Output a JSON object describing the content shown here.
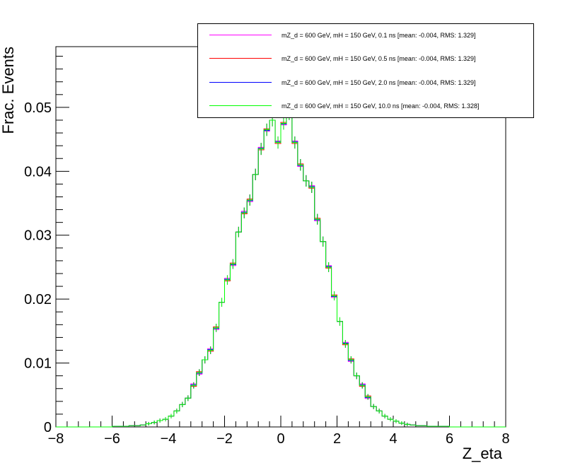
{
  "chart_data": {
    "type": "line",
    "xlabel": "Z_eta",
    "ylabel": "Frac. Events",
    "xlim": [
      -8,
      8
    ],
    "ylim": [
      0,
      0.0595
    ],
    "x_ticks": [
      "−8",
      "−6",
      "−4",
      "−2",
      "0",
      "2",
      "4",
      "6",
      "8"
    ],
    "y_ticks": [
      "0",
      "0.01",
      "0.02",
      "0.03",
      "0.04",
      "0.05"
    ],
    "bin_width": 0.2,
    "series": [
      {
        "name": "mZ_d = 600 GeV, mH = 150 GeV, 0.1 ns [mean: -0.004, RMS: 1.329]",
        "color": "#ff00ff"
      },
      {
        "name": "mZ_d = 600 GeV, mH = 150 GeV, 0.5 ns [mean: -0.004, RMS: 1.329]",
        "color": "#ff0000"
      },
      {
        "name": "mZ_d = 600 GeV, mH = 150 GeV, 2.0 ns [mean: -0.004, RMS: 1.329]",
        "color": "#0000ff"
      },
      {
        "name": "mZ_d = 600 GeV, mH = 150 GeV, 10.0 ns [mean: -0.004, RMS: 1.328]",
        "color": "#00ff00"
      }
    ],
    "bins": {
      "x": [
        -5.9,
        -5.7,
        -5.5,
        -5.3,
        -5.1,
        -4.9,
        -4.7,
        -4.5,
        -4.3,
        -4.1,
        -3.9,
        -3.7,
        -3.5,
        -3.3,
        -3.1,
        -2.9,
        -2.7,
        -2.5,
        -2.3,
        -2.1,
        -1.9,
        -1.7,
        -1.5,
        -1.3,
        -1.1,
        -0.9,
        -0.7,
        -0.5,
        -0.3,
        -0.1,
        0.1,
        0.3,
        0.5,
        0.7,
        0.9,
        1.1,
        1.3,
        1.5,
        1.7,
        1.9,
        2.1,
        2.3,
        2.5,
        2.7,
        2.9,
        3.1,
        3.3,
        3.5,
        3.7,
        3.9,
        4.1,
        4.3,
        4.5,
        4.7,
        4.9,
        5.1,
        5.3,
        5.5,
        5.7,
        5.9
      ],
      "y": [
        0.0001,
        0.0001,
        0.0001,
        0.0002,
        0.0002,
        0.0003,
        0.0005,
        0.0007,
        0.001,
        0.0012,
        0.0017,
        0.0025,
        0.0035,
        0.0045,
        0.0065,
        0.0085,
        0.0105,
        0.012,
        0.0155,
        0.0195,
        0.023,
        0.0255,
        0.0305,
        0.0335,
        0.0355,
        0.0395,
        0.0435,
        0.0465,
        0.048,
        0.0445,
        0.0475,
        0.049,
        0.0445,
        0.041,
        0.0385,
        0.0375,
        0.0325,
        0.029,
        0.025,
        0.0205,
        0.0165,
        0.013,
        0.0105,
        0.008,
        0.0065,
        0.0047,
        0.0032,
        0.0025,
        0.0017,
        0.0012,
        0.0009,
        0.0006,
        0.0004,
        0.0003,
        0.0002,
        0.0002,
        0.0001,
        0.0001,
        0.0001,
        0.0001
      ]
    },
    "legend_position": "top-right",
    "grid": false
  }
}
